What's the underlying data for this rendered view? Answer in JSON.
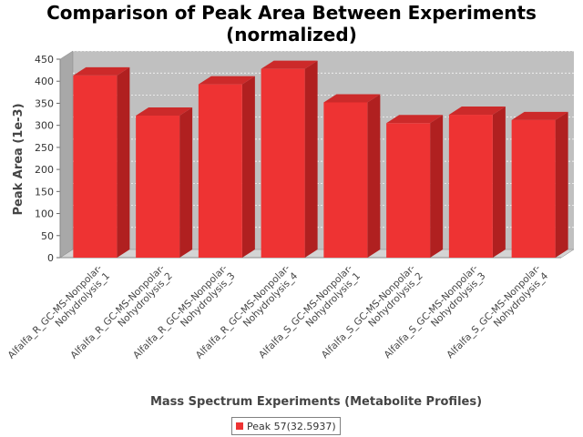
{
  "chart_data": {
    "type": "bar",
    "title_line1": "Comparison of Peak Area Between Experiments",
    "title_line2": "(normalized)",
    "xlabel": "Mass Spectrum Experiments (Metabolite Profiles)",
    "ylabel": "Peak Area (1e-3)",
    "ylim": [
      0,
      450
    ],
    "yticks": [
      "0",
      "50",
      "100",
      "150",
      "200",
      "250",
      "300",
      "350",
      "400",
      "450"
    ],
    "categories": [
      [
        "Alfalfa_R_GC-MS-Nonpolar-",
        "Nohydrolysis_1"
      ],
      [
        "Alfalfa_R_GC-MS-Nonpolar-",
        "Nohydrolysis_2"
      ],
      [
        "Alfalfa_R_GC-MS-Nonpolar-",
        "Nohydrolysis_3"
      ],
      [
        "Alfalfa_R_GC-MS-Nonpolar-",
        "Nohydrolysis_4"
      ],
      [
        "Alfalfa_S_GC-MS-Nonpolar-",
        "Nohydrolysis_1"
      ],
      [
        "Alfalfa_S_GC-MS-Nonpolar-",
        "Nohydrolysis_2"
      ],
      [
        "Alfalfa_S_GC-MS-Nonpolar-",
        "Nohydrolysis_3"
      ],
      [
        "Alfalfa_S_GC-MS-Nonpolar-",
        "Nohydrolysis_4"
      ]
    ],
    "series": [
      {
        "name": "Peak 57(32.5937)",
        "values": [
          413,
          322,
          393,
          428,
          352,
          305,
          324,
          312
        ]
      }
    ],
    "colors": {
      "bar": "#ee3333",
      "bar_top": "#cc2a2a",
      "bar_side": "#b02020",
      "plot_bg": "#c0c0c0"
    },
    "grid": true,
    "legend_position": "bottom"
  }
}
